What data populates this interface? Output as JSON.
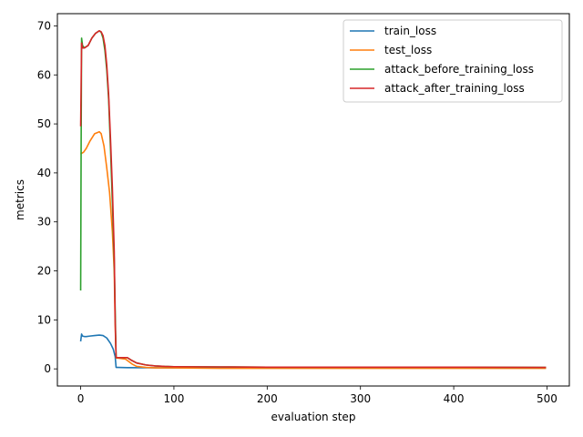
{
  "chart_data": {
    "type": "line",
    "title": "",
    "xlabel": "evaluation step",
    "ylabel": "metrics",
    "xlim": [
      -24.95,
      523.95
    ],
    "ylim": [
      -3.5,
      72.5
    ],
    "xticks": [
      0,
      100,
      200,
      300,
      400,
      500
    ],
    "yticks": [
      0,
      10,
      20,
      30,
      40,
      50,
      60,
      70
    ],
    "grid": false,
    "legend_position": "top-right",
    "series": [
      {
        "name": "train_loss",
        "color": "#1f77b4",
        "x": [
          0,
          1,
          2,
          4,
          6,
          10,
          15,
          20,
          24,
          28,
          32,
          35,
          37,
          38,
          40,
          50,
          100,
          200,
          300,
          400,
          499
        ],
        "y": [
          5.6,
          7.1,
          6.7,
          6.6,
          6.6,
          6.7,
          6.8,
          6.9,
          6.8,
          6.3,
          5.2,
          4.0,
          2.5,
          0.3,
          0.3,
          0.25,
          0.2,
          0.2,
          0.2,
          0.2,
          0.2
        ]
      },
      {
        "name": "test_loss",
        "color": "#ff7f0e",
        "x": [
          0,
          1,
          3,
          6,
          10,
          15,
          20,
          22,
          25,
          28,
          31,
          34,
          36,
          37,
          38,
          40,
          48,
          55,
          60,
          70,
          80,
          90,
          100,
          150,
          200,
          300,
          400,
          499
        ],
        "y": [
          43.8,
          44.0,
          44.2,
          45.0,
          46.5,
          48.0,
          48.4,
          48.0,
          45.5,
          41.0,
          36.0,
          28.0,
          20.0,
          9.0,
          2.2,
          2.2,
          2.0,
          1.0,
          0.5,
          0.3,
          0.2,
          0.2,
          0.2,
          0.1,
          0.1,
          0.1,
          0.1,
          0.1
        ]
      },
      {
        "name": "attack_before_training_loss",
        "color": "#2ca02c",
        "x": [
          0,
          0.5,
          1,
          2,
          4,
          8,
          12,
          16,
          20,
          22,
          24,
          26,
          28,
          30,
          32,
          34,
          36,
          37,
          38,
          40,
          45,
          50,
          55,
          60,
          70,
          80,
          90,
          100,
          150,
          200,
          300,
          400,
          499
        ],
        "y": [
          16.0,
          45.0,
          67.5,
          66.0,
          65.5,
          66.0,
          67.5,
          68.5,
          69.0,
          68.7,
          67.5,
          65.0,
          61.0,
          55.0,
          45.0,
          34.0,
          22.0,
          12.0,
          2.3,
          2.3,
          2.3,
          2.3,
          1.7,
          1.2,
          0.8,
          0.6,
          0.5,
          0.45,
          0.4,
          0.35,
          0.35,
          0.35,
          0.3
        ]
      },
      {
        "name": "attack_after_training_loss",
        "color": "#d62728",
        "x": [
          0,
          1,
          2,
          4,
          8,
          12,
          16,
          20,
          22,
          24,
          26,
          28,
          30,
          32,
          34,
          36,
          37,
          38,
          40,
          45,
          50,
          55,
          60,
          70,
          80,
          90,
          100,
          150,
          200,
          300,
          400,
          499
        ],
        "y": [
          49.5,
          66.5,
          65.5,
          65.5,
          66.0,
          67.5,
          68.5,
          69.0,
          68.8,
          68.0,
          66.0,
          62.0,
          56.0,
          47.0,
          37.0,
          24.0,
          10.0,
          2.3,
          2.3,
          2.3,
          2.3,
          1.7,
          1.2,
          0.8,
          0.6,
          0.5,
          0.45,
          0.4,
          0.35,
          0.35,
          0.35,
          0.3
        ]
      }
    ]
  }
}
